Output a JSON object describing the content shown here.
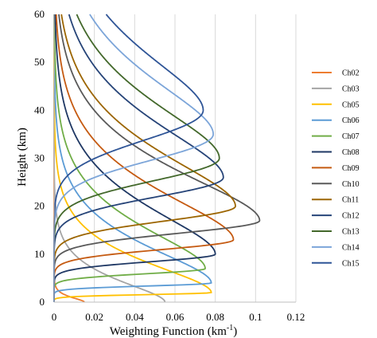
{
  "chart_data": {
    "type": "line",
    "xlabel": "Weighting Function (km-1)",
    "ylabel": "Height (km)",
    "xlim": [
      0,
      0.12
    ],
    "ylim": [
      0,
      60
    ],
    "x_ticks": [
      0,
      0.02,
      0.04,
      0.06,
      0.08,
      0.1,
      0.12
    ],
    "x_tick_labels": [
      "0",
      "0.02",
      "0.04",
      "0.06",
      "0.08",
      "0.1",
      "0.12"
    ],
    "y_ticks": [
      0,
      10,
      20,
      30,
      40,
      50,
      60
    ],
    "y_tick_labels": [
      "0",
      "10",
      "20",
      "30",
      "40",
      "50",
      "60"
    ],
    "grid": "vertical",
    "legend": "right",
    "series": [
      {
        "name": "Ch02",
        "color": "#ed7d31",
        "peak_height": 0,
        "peak_value": 0.015,
        "width_above": 0.7
      },
      {
        "name": "Ch03",
        "color": "#a5a5a5",
        "peak_height": 0,
        "peak_value": 0.055,
        "width_above": 3.2
      },
      {
        "name": "Ch05",
        "color": "#ffc000",
        "peak_height": 2,
        "peak_value": 0.078,
        "width_above": 4.5
      },
      {
        "name": "Ch06",
        "color": "#5b9bd5",
        "peak_height": 4,
        "peak_value": 0.078,
        "width_above": 5.5
      },
      {
        "name": "Ch07",
        "color": "#70ad47",
        "peak_height": 7,
        "peak_value": 0.075,
        "width_above": 6.2
      },
      {
        "name": "Ch08",
        "color": "#1f3864",
        "peak_height": 10,
        "peak_value": 0.08,
        "width_above": 7.0
      },
      {
        "name": "Ch09",
        "color": "#c55a11",
        "peak_height": 13,
        "peak_value": 0.089,
        "width_above": 7.3
      },
      {
        "name": "Ch10",
        "color": "#595959",
        "peak_height": 17,
        "peak_value": 0.102,
        "width_above": 7.6
      },
      {
        "name": "Ch11",
        "color": "#9c6500",
        "peak_height": 20,
        "peak_value": 0.09,
        "width_above": 8.0
      },
      {
        "name": "Ch12",
        "color": "#264478",
        "peak_height": 26,
        "peak_value": 0.084,
        "width_above": 8.4
      },
      {
        "name": "Ch13",
        "color": "#43682b",
        "peak_height": 30,
        "peak_value": 0.082,
        "width_above": 8.6
      },
      {
        "name": "Ch14",
        "color": "#7ca5d9",
        "peak_height": 35,
        "peak_value": 0.079,
        "width_above": 8.8
      },
      {
        "name": "Ch15",
        "color": "#2f5597",
        "peak_height": 40,
        "peak_value": 0.074,
        "width_above": 9.0
      }
    ]
  }
}
